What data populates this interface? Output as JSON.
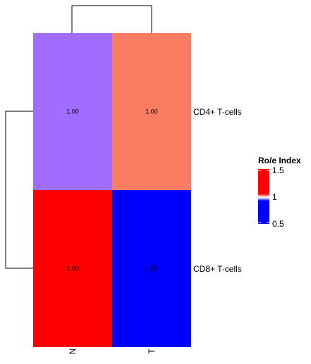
{
  "chart_data": {
    "type": "heatmap",
    "rows": [
      "CD4+ T-cells",
      "CD8+ T-cells"
    ],
    "columns": [
      "N",
      "T"
    ],
    "values": [
      [
        1.0,
        1.0
      ],
      [
        1.0,
        1.0
      ]
    ],
    "cell_labels": [
      [
        "1.00",
        "1.00"
      ],
      [
        "1.00",
        "1.00"
      ]
    ],
    "cell_colors": [
      [
        "#a06dff",
        "#fa7c62"
      ],
      [
        "#ff0000",
        "#0000ff"
      ]
    ],
    "legend": {
      "title": "Ro/e Index",
      "ticks": [
        "1.5",
        "1",
        "0.5"
      ],
      "colors": [
        "#ff0000",
        "#0000ff"
      ]
    },
    "row_dendrogram": true,
    "column_dendrogram": true
  }
}
